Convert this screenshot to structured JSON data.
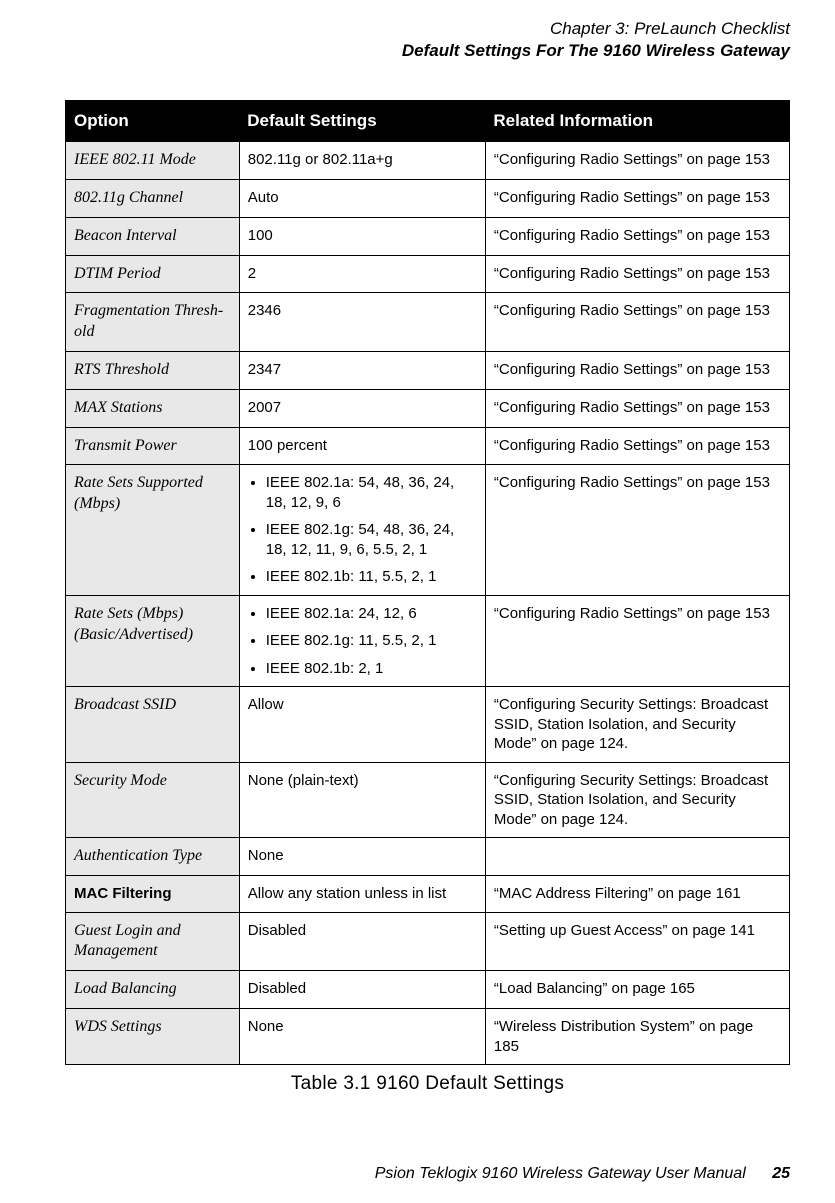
{
  "header": {
    "line1": "Chapter 3:  PreLaunch Checklist",
    "line2": "Default Settings For The 9160 Wireless Gateway"
  },
  "table": {
    "columns": {
      "option": "Option",
      "default": "Default Settings",
      "related": "Related Information"
    },
    "rows": [
      {
        "option": "IEEE 802.11 Mode",
        "option_bold": false,
        "default": {
          "type": "text",
          "value": "802.11g or 802.11a+g"
        },
        "related": "“Configuring Radio Settings” on page 153"
      },
      {
        "option": "802.11g Channel",
        "option_bold": false,
        "default": {
          "type": "text",
          "value": "Auto"
        },
        "related": "“Configuring Radio Settings” on page 153"
      },
      {
        "option": "Beacon Interval",
        "option_bold": false,
        "default": {
          "type": "text",
          "value": "100"
        },
        "related": "“Configuring Radio Settings” on page 153"
      },
      {
        "option": "DTIM Period",
        "option_bold": false,
        "default": {
          "type": "text",
          "value": "2"
        },
        "related": "“Configuring Radio Settings” on page 153"
      },
      {
        "option": "Fragmentation Thresh-old",
        "option_bold": false,
        "default": {
          "type": "text",
          "value": "2346"
        },
        "related": "“Configuring Radio Settings” on page 153"
      },
      {
        "option": "RTS Threshold",
        "option_bold": false,
        "default": {
          "type": "text",
          "value": "2347"
        },
        "related": "“Configuring Radio Settings” on page 153"
      },
      {
        "option": "MAX Stations",
        "option_bold": false,
        "default": {
          "type": "text",
          "value": "2007"
        },
        "related": "“Configuring Radio Settings” on page 153"
      },
      {
        "option": "Transmit Power",
        "option_bold": false,
        "default": {
          "type": "text",
          "value": "100 percent"
        },
        "related": "“Configuring Radio Settings” on page 153"
      },
      {
        "option": "Rate Sets Supported (Mbps)",
        "option_bold": false,
        "default": {
          "type": "list",
          "items": [
            "IEEE 802.1a:  54, 48, 36, 24, 18, 12, 9, 6",
            "IEEE 802.1g:  54, 48, 36, 24, 18, 12, 11, 9, 6, 5.5, 2, 1",
            "IEEE 802.1b:  11, 5.5, 2, 1"
          ]
        },
        "related": "“Configuring Radio Settings” on page 153"
      },
      {
        "option": "Rate Sets (Mbps) (Basic/Advertised)",
        "option_bold": false,
        "default": {
          "type": "list",
          "items": [
            " IEEE 802.1a:  24, 12, 6",
            "IEEE 802.1g: 11, 5.5, 2, 1",
            "IEEE 802.1b:  2, 1"
          ]
        },
        "related": "“Configuring Radio Settings” on page 153"
      },
      {
        "option": "Broadcast SSID",
        "option_bold": false,
        "default": {
          "type": "text",
          "value": "Allow"
        },
        "related": "“Configuring Security Settings: Broadcast SSID, Station Isolation, and Security Mode” on page 124."
      },
      {
        "option": "Security Mode",
        "option_bold": false,
        "default": {
          "type": "text",
          "value": "None (plain-text)"
        },
        "related": "“Configuring Security Settings: Broadcast SSID, Station Isolation, and Security Mode” on page 124."
      },
      {
        "option": "Authentication Type",
        "option_bold": false,
        "default": {
          "type": "text",
          "value": "None"
        },
        "related": ""
      },
      {
        "option": "MAC Filtering",
        "option_bold": true,
        "default": {
          "type": "text",
          "value": "Allow any station unless in list"
        },
        "related": "“MAC Address Filtering” on page 161"
      },
      {
        "option": "Guest Login and Management",
        "option_bold": false,
        "default": {
          "type": "text",
          "value": "Disabled"
        },
        "related": "“Setting up Guest Access” on page 141"
      },
      {
        "option": "Load Balancing",
        "option_bold": false,
        "default": {
          "type": "text",
          "value": "Disabled"
        },
        "related": "“Load Balancing” on page 165"
      },
      {
        "option": "WDS Settings",
        "option_bold": false,
        "default": {
          "type": "text",
          "value": "None"
        },
        "related": "“Wireless Distribution System” on page 185"
      }
    ],
    "caption": "Table 3.1 9160 Default Settings"
  },
  "footer": {
    "manual": "Psion Teklogix 9160 Wireless Gateway User Manual",
    "page": "25"
  }
}
